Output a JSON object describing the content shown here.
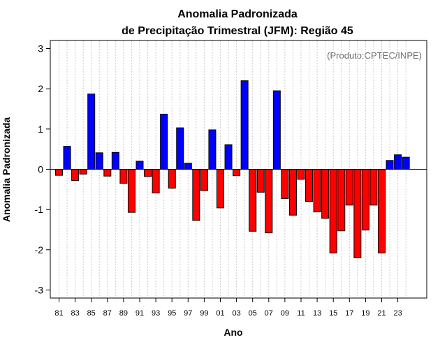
{
  "chart_data": {
    "type": "bar",
    "title_line1": "Anomalia Padronizada",
    "title_line2": "de Precipitação Trimestral (JFM): Região 45",
    "xlabel": "Ano",
    "ylabel": "Anomalia Padronizada",
    "credit": "(Produto:CPTEC/INPE)",
    "ylim": [
      -3.2,
      3.2
    ],
    "y_ticks": [
      -3,
      -2,
      -1,
      0,
      1,
      2,
      3
    ],
    "y_tick_labels": [
      "-3",
      "-2",
      "-1",
      "0",
      "1",
      "2",
      "3"
    ],
    "x_tick_labels": [
      "81",
      "83",
      "85",
      "87",
      "89",
      "91",
      "93",
      "95",
      "97",
      "99",
      "01",
      "03",
      "05",
      "07",
      "09",
      "11",
      "13",
      "15",
      "17",
      "19",
      "21",
      "23"
    ],
    "categories": [
      "1981",
      "1982",
      "1983",
      "1984",
      "1985",
      "1986",
      "1987",
      "1988",
      "1989",
      "1990",
      "1991",
      "1992",
      "1993",
      "1994",
      "1995",
      "1996",
      "1997",
      "1998",
      "1999",
      "2000",
      "2001",
      "2002",
      "2003",
      "2004",
      "2005",
      "2006",
      "2007",
      "2008",
      "2009",
      "2010",
      "2011",
      "2012",
      "2013",
      "2014",
      "2015",
      "2016",
      "2017",
      "2018",
      "2019",
      "2020",
      "2021",
      "2022",
      "2023",
      "2024"
    ],
    "values": [
      -0.15,
      0.57,
      -0.28,
      -0.12,
      1.87,
      0.41,
      -0.17,
      0.42,
      -0.35,
      -1.07,
      0.2,
      -0.18,
      -0.59,
      1.37,
      -0.47,
      1.03,
      0.15,
      -1.27,
      -0.53,
      0.98,
      -0.96,
      0.61,
      -0.16,
      2.2,
      -1.54,
      -0.57,
      -1.58,
      1.95,
      -0.73,
      -1.14,
      -0.25,
      -0.8,
      -1.06,
      -1.22,
      -2.08,
      -1.53,
      -0.89,
      -2.2,
      -1.51,
      -0.89,
      -2.08,
      0.22,
      0.36,
      0.3
    ],
    "colors": {
      "positive": "#0000ff",
      "negative": "#ff0000",
      "grid": "#cccccc",
      "axis": "#000000"
    },
    "grid": true
  }
}
